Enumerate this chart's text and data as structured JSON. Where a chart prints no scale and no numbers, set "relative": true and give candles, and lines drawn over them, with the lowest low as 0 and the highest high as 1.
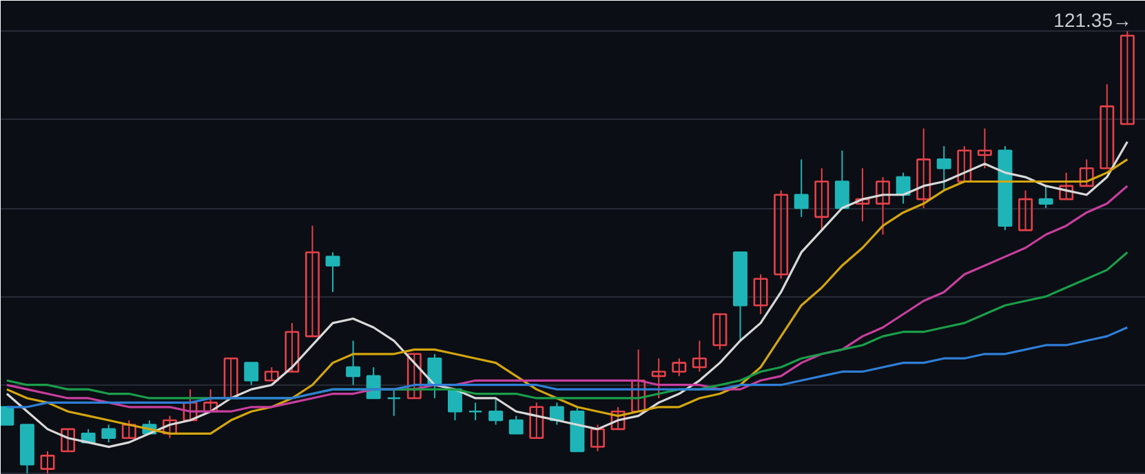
{
  "chart_data": {
    "type": "candlestick",
    "relative": true,
    "grid": "y",
    "categories": [
      null,
      null,
      null,
      null,
      null,
      null,
      null,
      null,
      null,
      null,
      null,
      null,
      null,
      null,
      null,
      null,
      null,
      null,
      null,
      null,
      null,
      null,
      null,
      null,
      null,
      null,
      null,
      null,
      null,
      null,
      null,
      null,
      null,
      null,
      null,
      null,
      null,
      null,
      null,
      null,
      null,
      null,
      null,
      null,
      null,
      null,
      null,
      null,
      null,
      null,
      null,
      null,
      null,
      null,
      null,
      null
    ],
    "ohlc": [
      [
        0.15,
        0.15,
        0.11,
        0.11
      ],
      [
        0.11,
        0.11,
        0.0,
        0.02
      ],
      [
        0.01,
        0.05,
        0,
        0.04
      ],
      [
        0.05,
        0.1,
        0.05,
        0.1
      ],
      [
        0.09,
        0.1,
        0.07,
        0.07
      ],
      [
        0.1,
        0.11,
        0.07,
        0.08
      ],
      [
        0.08,
        0.12,
        0.08,
        0.11
      ],
      [
        0.11,
        0.12,
        0.09,
        0.09
      ],
      [
        0.09,
        0.13,
        0.08,
        0.12
      ],
      [
        0.12,
        0.19,
        0.12,
        0.16
      ],
      [
        0.14,
        0.19,
        0.14,
        0.16
      ],
      [
        0.17,
        0.26,
        0.17,
        0.26
      ],
      [
        0.25,
        0.25,
        0.2,
        0.21
      ],
      [
        0.21,
        0.24,
        0.21,
        0.23
      ],
      [
        0.23,
        0.34,
        0.23,
        0.32
      ],
      [
        0.31,
        0.56,
        0.31,
        0.5
      ],
      [
        0.49,
        0.5,
        0.41,
        0.47
      ],
      [
        0.24,
        0.3,
        0.2,
        0.22
      ],
      [
        0.22,
        0.24,
        0.17,
        0.17
      ],
      [
        0.17,
        0.19,
        0.13,
        0.17
      ],
      [
        0.17,
        0.27,
        0.17,
        0.27
      ],
      [
        0.26,
        0.27,
        0.17,
        0.2
      ],
      [
        0.19,
        0.19,
        0.12,
        0.14
      ],
      [
        0.14,
        0.16,
        0.12,
        0.14
      ],
      [
        0.14,
        0.17,
        0.11,
        0.12
      ],
      [
        0.12,
        0.13,
        0.09,
        0.09
      ],
      [
        0.08,
        0.16,
        0.08,
        0.15
      ],
      [
        0.15,
        0.16,
        0.11,
        0.12
      ],
      [
        0.14,
        0.15,
        0.05,
        0.05
      ],
      [
        0.06,
        0.11,
        0.05,
        0.1
      ],
      [
        0.1,
        0.15,
        0.1,
        0.14
      ],
      [
        0.14,
        0.28,
        0.14,
        0.21
      ],
      [
        0.22,
        0.26,
        0.17,
        0.23
      ],
      [
        0.23,
        0.26,
        0.22,
        0.25
      ],
      [
        0.24,
        0.3,
        0.23,
        0.26
      ],
      [
        0.29,
        0.36,
        0.28,
        0.36
      ],
      [
        0.5,
        0.5,
        0.3,
        0.38
      ],
      [
        0.38,
        0.45,
        0.36,
        0.44
      ],
      [
        0.45,
        0.64,
        0.44,
        0.63
      ],
      [
        0.63,
        0.71,
        0.58,
        0.6
      ],
      [
        0.58,
        0.69,
        0.55,
        0.66
      ],
      [
        0.66,
        0.73,
        0.6,
        0.6
      ],
      [
        0.61,
        0.69,
        0.57,
        0.62
      ],
      [
        0.61,
        0.67,
        0.54,
        0.66
      ],
      [
        0.67,
        0.68,
        0.61,
        0.63
      ],
      [
        0.62,
        0.78,
        0.6,
        0.71
      ],
      [
        0.71,
        0.74,
        0.64,
        0.69
      ],
      [
        0.66,
        0.74,
        0.66,
        0.73
      ],
      [
        0.72,
        0.78,
        0.69,
        0.73
      ],
      [
        0.73,
        0.74,
        0.55,
        0.56
      ],
      [
        0.55,
        0.64,
        0.55,
        0.62
      ],
      [
        0.62,
        0.65,
        0.6,
        0.61
      ],
      [
        0.62,
        0.68,
        0.62,
        0.65
      ],
      [
        0.65,
        0.71,
        0.65,
        0.69
      ],
      [
        0.69,
        0.88,
        0.69,
        0.83
      ],
      [
        0.79,
        1,
        0.79,
        0.99
      ]
    ],
    "colors": [
      "#1fb5b8",
      "#1fb5b8",
      "#e8414a",
      "#e8414a",
      "#1fb5b8",
      "#1fb5b8",
      "#e8414a",
      "#1fb5b8",
      "#e8414a",
      "#e8414a",
      "#e8414a",
      "#e8414a",
      "#1fb5b8",
      "#e8414a",
      "#e8414a",
      "#e8414a",
      "#1fb5b8",
      "#1fb5b8",
      "#1fb5b8",
      "#1fb5b8",
      "#e8414a",
      "#1fb5b8",
      "#1fb5b8",
      "#1fb5b8",
      "#1fb5b8",
      "#1fb5b8",
      "#e8414a",
      "#1fb5b8",
      "#1fb5b8",
      "#e8414a",
      "#e8414a",
      "#e8414a",
      "#e8414a",
      "#e8414a",
      "#e8414a",
      "#e8414a",
      "#1fb5b8",
      "#e8414a",
      "#e8414a",
      "#1fb5b8",
      "#e8414a",
      "#1fb5b8",
      "#e8414a",
      "#e8414a",
      "#1fb5b8",
      "#e8414a",
      "#1fb5b8",
      "#e8414a",
      "#e8414a",
      "#1fb5b8",
      "#e8414a",
      "#1fb5b8",
      "#e8414a",
      "#e8414a",
      "#e8414a",
      "#e8414a"
    ],
    "series": [
      {
        "type": "line",
        "color": "#d9d9d9",
        "values": [
          0.18,
          0.14,
          0.1,
          0.08,
          0.07,
          0.06,
          0.07,
          0.09,
          0.11,
          0.12,
          0.14,
          0.17,
          0.19,
          0.2,
          0.24,
          0.29,
          0.34,
          0.35,
          0.33,
          0.3,
          0.25,
          0.2,
          0.19,
          0.17,
          0.17,
          0.14,
          0.13,
          0.12,
          0.11,
          0.1,
          0.12,
          0.13,
          0.16,
          0.18,
          0.21,
          0.25,
          0.3,
          0.34,
          0.41,
          0.5,
          0.55,
          0.6,
          0.62,
          0.63,
          0.63,
          0.65,
          0.66,
          0.68,
          0.7,
          0.68,
          0.67,
          0.65,
          0.64,
          0.63,
          0.67,
          0.75
        ]
      },
      {
        "type": "line",
        "color": "#d4a60f",
        "values": [
          0.19,
          0.17,
          0.16,
          0.14,
          0.13,
          0.12,
          0.11,
          0.1,
          0.09,
          0.09,
          0.09,
          0.12,
          0.14,
          0.15,
          0.17,
          0.2,
          0.25,
          0.27,
          0.27,
          0.27,
          0.28,
          0.28,
          0.27,
          0.26,
          0.25,
          0.22,
          0.19,
          0.17,
          0.15,
          0.14,
          0.13,
          0.14,
          0.15,
          0.15,
          0.17,
          0.18,
          0.2,
          0.24,
          0.31,
          0.38,
          0.42,
          0.47,
          0.51,
          0.56,
          0.59,
          0.61,
          0.64,
          0.66,
          0.66,
          0.66,
          0.66,
          0.66,
          0.66,
          0.66,
          0.68,
          0.71
        ]
      },
      {
        "type": "line",
        "color": "#c83f9e",
        "values": [
          0.2,
          0.19,
          0.18,
          0.17,
          0.17,
          0.16,
          0.15,
          0.15,
          0.15,
          0.14,
          0.14,
          0.14,
          0.15,
          0.15,
          0.16,
          0.17,
          0.18,
          0.18,
          0.19,
          0.19,
          0.19,
          0.2,
          0.2,
          0.21,
          0.21,
          0.21,
          0.21,
          0.21,
          0.21,
          0.21,
          0.21,
          0.21,
          0.2,
          0.2,
          0.2,
          0.19,
          0.19,
          0.21,
          0.22,
          0.25,
          0.27,
          0.28,
          0.31,
          0.33,
          0.36,
          0.39,
          0.41,
          0.45,
          0.47,
          0.49,
          0.51,
          0.54,
          0.56,
          0.59,
          0.61,
          0.65
        ]
      },
      {
        "type": "line",
        "color": "#1a9e4a",
        "values": [
          0.21,
          0.2,
          0.2,
          0.19,
          0.19,
          0.18,
          0.18,
          0.17,
          0.17,
          0.17,
          0.17,
          0.17,
          0.17,
          0.17,
          0.17,
          0.18,
          0.19,
          0.19,
          0.19,
          0.19,
          0.19,
          0.19,
          0.19,
          0.18,
          0.18,
          0.18,
          0.17,
          0.17,
          0.17,
          0.17,
          0.17,
          0.17,
          0.18,
          0.19,
          0.19,
          0.2,
          0.21,
          0.23,
          0.24,
          0.26,
          0.27,
          0.28,
          0.29,
          0.31,
          0.32,
          0.32,
          0.33,
          0.34,
          0.36,
          0.38,
          0.39,
          0.4,
          0.42,
          0.44,
          0.46,
          0.5
        ]
      },
      {
        "type": "line",
        "color": "#2f7fd8",
        "values": [
          0.15,
          0.15,
          0.16,
          0.16,
          0.16,
          0.16,
          0.16,
          0.16,
          0.16,
          0.16,
          0.17,
          0.17,
          0.17,
          0.17,
          0.17,
          0.18,
          0.19,
          0.19,
          0.19,
          0.19,
          0.2,
          0.2,
          0.2,
          0.2,
          0.2,
          0.2,
          0.2,
          0.19,
          0.19,
          0.19,
          0.19,
          0.19,
          0.19,
          0.19,
          0.19,
          0.19,
          0.2,
          0.2,
          0.2,
          0.21,
          0.22,
          0.23,
          0.23,
          0.24,
          0.25,
          0.25,
          0.26,
          0.26,
          0.27,
          0.27,
          0.28,
          0.29,
          0.29,
          0.3,
          0.31,
          0.33
        ]
      }
    ],
    "annotations": [
      "121.35→"
    ]
  }
}
